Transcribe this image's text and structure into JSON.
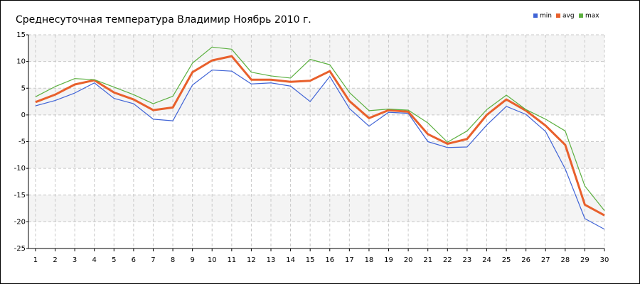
{
  "chart_data": {
    "type": "line",
    "title": "Среднесуточная температура Владимир  Ноябрь 2010 г.",
    "x": [
      1,
      2,
      3,
      4,
      5,
      6,
      7,
      8,
      9,
      10,
      11,
      12,
      13,
      14,
      15,
      16,
      17,
      18,
      19,
      20,
      21,
      22,
      23,
      24,
      25,
      26,
      27,
      28,
      29,
      30
    ],
    "xlim": [
      0.64,
      30
    ],
    "xticks": [
      1,
      2,
      3,
      4,
      5,
      6,
      7,
      8,
      9,
      10,
      11,
      12,
      13,
      14,
      15,
      16,
      17,
      18,
      19,
      20,
      21,
      22,
      23,
      24,
      25,
      26,
      27,
      28,
      29,
      30
    ],
    "ylim": [
      -25,
      15
    ],
    "yticks": [
      -25,
      -20,
      -15,
      -10,
      -5,
      0,
      5,
      10,
      15
    ],
    "grid": true,
    "legend": "top-right",
    "series": [
      {
        "name": "min",
        "color": "#3f63d6",
        "values": [
          1.7,
          2.7,
          4.1,
          6.0,
          3.1,
          2.1,
          -0.8,
          -1.1,
          5.6,
          8.4,
          8.2,
          5.8,
          6.0,
          5.4,
          2.5,
          7.2,
          1.2,
          -2.1,
          0.5,
          0.3,
          -5.0,
          -6.1,
          -6.0,
          -1.9,
          1.6,
          0.1,
          -3.1,
          -10.1,
          -19.4,
          -21.4
        ]
      },
      {
        "name": "avg",
        "color": "#e8602c",
        "values": [
          2.4,
          3.8,
          5.7,
          6.5,
          4.2,
          2.9,
          0.9,
          1.4,
          8.0,
          10.2,
          11.0,
          6.6,
          6.6,
          6.2,
          6.4,
          8.2,
          2.6,
          -0.6,
          0.9,
          0.6,
          -3.6,
          -5.4,
          -4.5,
          0.0,
          2.9,
          0.8,
          -2.0,
          -5.6,
          -16.8,
          -18.8
        ]
      },
      {
        "name": "max",
        "color": "#5cb040",
        "values": [
          3.4,
          5.3,
          6.8,
          6.6,
          5.2,
          3.8,
          2.1,
          3.5,
          9.7,
          12.7,
          12.3,
          8.0,
          7.3,
          6.9,
          10.4,
          9.4,
          4.2,
          0.8,
          1.1,
          0.9,
          -1.5,
          -5.1,
          -3.0,
          1.0,
          3.7,
          1.0,
          -0.8,
          -3.0,
          -13.3,
          -17.9
        ]
      }
    ]
  }
}
